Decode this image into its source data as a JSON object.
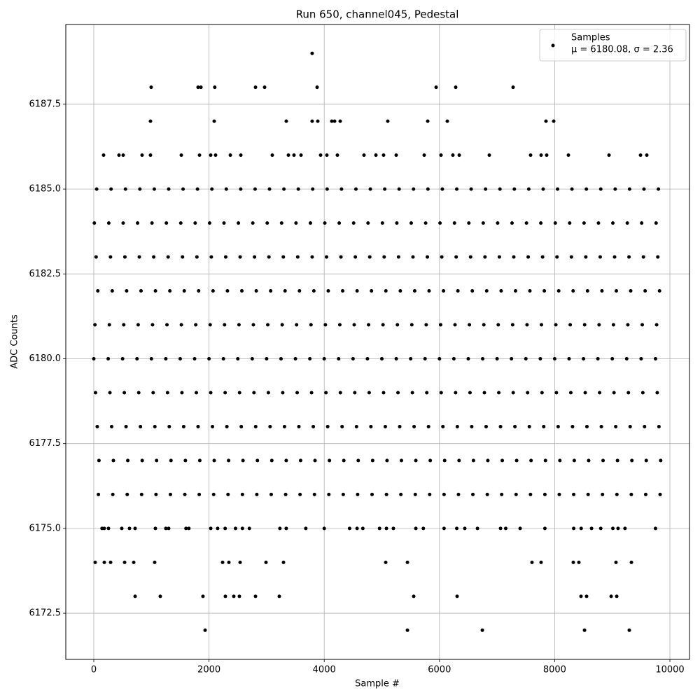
{
  "chart_data": {
    "type": "scatter",
    "title": "Run 650, channel045, Pedestal",
    "x_label": "Sample #",
    "y_label": "ADC Counts",
    "xlim": [
      -486,
      10340
    ],
    "ylim": [
      6171.14,
      6189.85
    ],
    "xticks": [
      0,
      2000,
      4000,
      6000,
      8000,
      10000
    ],
    "yticks": [
      6172.5,
      {
        "value": 6175,
        "label": "6175.0"
      },
      6177.5,
      {
        "value": 6180,
        "label": "6180.0"
      },
      6182.5,
      {
        "value": 6185,
        "label": "6185.0"
      },
      6187.5
    ],
    "grid": true,
    "legend": "upper right",
    "series": [
      {
        "name": "Samples",
        "stats": "μ = 6180.08, σ = 2.36",
        "color": "#000000",
        "x": [
          10,
          260,
          510,
          760,
          1010,
          1260,
          1510,
          1760,
          2010,
          2260,
          2510,
          2760,
          3010,
          3260,
          3510,
          3760,
          4010,
          4260,
          4510,
          4760,
          5010,
          5260,
          5510,
          5760,
          6010,
          6260,
          6510,
          6760,
          7010,
          7260,
          7510,
          7760,
          8010,
          8260,
          8510,
          8760,
          9010,
          9260,
          9510,
          9760,
          40,
          290,
          540,
          790,
          1040,
          1290,
          1540,
          1790,
          2040,
          2290,
          2540,
          2790,
          3040,
          3290,
          3540,
          3790,
          4040,
          4290,
          4540,
          4790,
          5040,
          5290,
          5540,
          5790,
          6040,
          6290,
          6540,
          6790,
          7040,
          7290,
          7540,
          7790,
          8040,
          8290,
          8540,
          8790,
          9040,
          9290,
          9540,
          9790,
          70,
          320,
          570,
          820,
          1070,
          1320,
          1570,
          1820,
          2070,
          2320,
          2570,
          2820,
          3070,
          3320,
          3570,
          3820,
          4070,
          4320,
          4570,
          4820,
          5070,
          5320,
          5570,
          5820,
          6070,
          6320,
          6570,
          6820,
          7070,
          7320,
          7570,
          7820,
          8070,
          8320,
          8570,
          8820,
          9070,
          9320,
          9570,
          9820,
          20,
          270,
          520,
          770,
          1020,
          1270,
          1520,
          1770,
          2020,
          2270,
          2520,
          2770,
          3020,
          3270,
          3520,
          3770,
          4020,
          4270,
          4520,
          4770,
          5020,
          5270,
          5520,
          5770,
          6020,
          6270,
          6520,
          6770,
          7020,
          7270,
          7520,
          7770,
          8020,
          8270,
          8520,
          8770,
          9020,
          9270,
          9520,
          9770,
          0,
          250,
          500,
          750,
          1000,
          1250,
          1500,
          1750,
          2000,
          2250,
          2500,
          2750,
          3000,
          3250,
          3500,
          3750,
          4000,
          4250,
          4500,
          4750,
          5000,
          5250,
          5500,
          5750,
          6000,
          6250,
          6500,
          6750,
          7000,
          7250,
          7500,
          7750,
          8000,
          8250,
          8500,
          8750,
          9000,
          9250,
          9500,
          9750,
          30,
          280,
          530,
          780,
          1030,
          1280,
          1530,
          1780,
          2030,
          2280,
          2530,
          2780,
          3030,
          3280,
          3530,
          3780,
          4030,
          4280,
          4530,
          4780,
          5030,
          5280,
          5530,
          5780,
          6030,
          6280,
          6530,
          6780,
          7030,
          7280,
          7530,
          7780,
          8030,
          8280,
          8530,
          8780,
          9030,
          9280,
          9530,
          9780,
          60,
          310,
          560,
          810,
          1060,
          1310,
          1560,
          1810,
          2060,
          2310,
          2560,
          2810,
          3060,
          3310,
          3560,
          3810,
          4060,
          4310,
          4560,
          4810,
          5060,
          5310,
          5560,
          5810,
          6060,
          6310,
          6560,
          6810,
          7060,
          7310,
          7560,
          7810,
          8060,
          8310,
          8560,
          8810,
          9060,
          9310,
          9560,
          9810,
          90,
          340,
          590,
          840,
          1090,
          1340,
          1590,
          1840,
          2090,
          2340,
          2590,
          2840,
          3090,
          3340,
          3590,
          3840,
          4090,
          4340,
          4590,
          4840,
          5090,
          5340,
          5590,
          5840,
          6090,
          6340,
          6590,
          6840,
          7090,
          7340,
          7590,
          7840,
          8090,
          8340,
          8590,
          8840,
          9090,
          9340,
          9590,
          9840,
          50,
          300,
          550,
          800,
          1050,
          1300,
          1550,
          1800,
          2050,
          2300,
          2550,
          2800,
          3050,
          3300,
          3550,
          3800,
          4050,
          4300,
          4550,
          4800,
          5050,
          5300,
          5550,
          5800,
          6050,
          6300,
          6550,
          6800,
          7050,
          7300,
          7550,
          7800,
          8050,
          8300,
          8550,
          8800,
          9050,
          9300,
          9550,
          9800,
          80,
          330,
          580,
          830,
          1080,
          1330,
          1580,
          1830,
          2080,
          2330,
          2580,
          2830,
          3080,
          3330,
          3580,
          3830,
          4080,
          4330,
          4580,
          4830,
          5080,
          5330,
          5580,
          5830,
          6080,
          6330,
          6580,
          6830,
          7080,
          7330,
          7580,
          7830,
          8080,
          8330,
          8580,
          8830,
          9080,
          9330,
          9580,
          9830,
          143,
          182,
          255,
          486,
          620,
          717,
          1069,
          1250,
          1300,
          1600,
          1650,
          2030,
          2150,
          2280,
          2460,
          2580,
          2700,
          3230,
          3340,
          3680,
          4000,
          4440,
          4570,
          4670,
          4960,
          5080,
          5200,
          5590,
          5720,
          6080,
          6300,
          6440,
          6660,
          7060,
          7150,
          7400,
          7830,
          8330,
          8460,
          8640,
          8800,
          9010,
          9100,
          9220,
          9750,
          3790,
          996,
          1810,
          1860,
          2100,
          2807,
          2965,
          3876,
          5942,
          6282,
          7278,
          984,
          2090,
          3341,
          3790,
          3888,
          4131,
          4180,
          4277,
          5103,
          5796,
          6136,
          7849,
          7983,
          170,
          437,
          510,
          838,
          984,
          1519,
          1835,
          2029,
          2114,
          2370,
          2552,
          3098,
          3378,
          3475,
          3597,
          3937,
          4046,
          4228,
          4690,
          4897,
          5030,
          5249,
          5735,
          6027,
          6233,
          6343,
          6865,
          7582,
          7764,
          7861,
          8238,
          8943,
          9490,
          9599,
          24,
          182,
          292,
          535,
          693,
          1057,
          2236,
          2345,
          2540,
          2989,
          3293,
          5067,
          5444,
          7606,
          7764,
          8323,
          8420,
          9064,
          9332,
          717,
          1154,
          1895,
          2284,
          2430,
          2527,
          2807,
          3220,
          5553,
          6306,
          8457,
          8554,
          8980,
          9077,
          1932,
          5444,
          6744,
          8518,
          9295
        ],
        "values": [
          6184,
          6184,
          6184,
          6184,
          6184,
          6184,
          6184,
          6184,
          6184,
          6184,
          6184,
          6184,
          6184,
          6184,
          6184,
          6184,
          6184,
          6184,
          6184,
          6184,
          6184,
          6184,
          6184,
          6184,
          6184,
          6184,
          6184,
          6184,
          6184,
          6184,
          6184,
          6184,
          6184,
          6184,
          6184,
          6184,
          6184,
          6184,
          6184,
          6184,
          6183,
          6183,
          6183,
          6183,
          6183,
          6183,
          6183,
          6183,
          6183,
          6183,
          6183,
          6183,
          6183,
          6183,
          6183,
          6183,
          6183,
          6183,
          6183,
          6183,
          6183,
          6183,
          6183,
          6183,
          6183,
          6183,
          6183,
          6183,
          6183,
          6183,
          6183,
          6183,
          6183,
          6183,
          6183,
          6183,
          6183,
          6183,
          6183,
          6183,
          6182,
          6182,
          6182,
          6182,
          6182,
          6182,
          6182,
          6182,
          6182,
          6182,
          6182,
          6182,
          6182,
          6182,
          6182,
          6182,
          6182,
          6182,
          6182,
          6182,
          6182,
          6182,
          6182,
          6182,
          6182,
          6182,
          6182,
          6182,
          6182,
          6182,
          6182,
          6182,
          6182,
          6182,
          6182,
          6182,
          6182,
          6182,
          6182,
          6182,
          6181,
          6181,
          6181,
          6181,
          6181,
          6181,
          6181,
          6181,
          6181,
          6181,
          6181,
          6181,
          6181,
          6181,
          6181,
          6181,
          6181,
          6181,
          6181,
          6181,
          6181,
          6181,
          6181,
          6181,
          6181,
          6181,
          6181,
          6181,
          6181,
          6181,
          6181,
          6181,
          6181,
          6181,
          6181,
          6181,
          6181,
          6181,
          6181,
          6181,
          6180,
          6180,
          6180,
          6180,
          6180,
          6180,
          6180,
          6180,
          6180,
          6180,
          6180,
          6180,
          6180,
          6180,
          6180,
          6180,
          6180,
          6180,
          6180,
          6180,
          6180,
          6180,
          6180,
          6180,
          6180,
          6180,
          6180,
          6180,
          6180,
          6180,
          6180,
          6180,
          6180,
          6180,
          6180,
          6180,
          6180,
          6180,
          6180,
          6180,
          6179,
          6179,
          6179,
          6179,
          6179,
          6179,
          6179,
          6179,
          6179,
          6179,
          6179,
          6179,
          6179,
          6179,
          6179,
          6179,
          6179,
          6179,
          6179,
          6179,
          6179,
          6179,
          6179,
          6179,
          6179,
          6179,
          6179,
          6179,
          6179,
          6179,
          6179,
          6179,
          6179,
          6179,
          6179,
          6179,
          6179,
          6179,
          6179,
          6179,
          6178,
          6178,
          6178,
          6178,
          6178,
          6178,
          6178,
          6178,
          6178,
          6178,
          6178,
          6178,
          6178,
          6178,
          6178,
          6178,
          6178,
          6178,
          6178,
          6178,
          6178,
          6178,
          6178,
          6178,
          6178,
          6178,
          6178,
          6178,
          6178,
          6178,
          6178,
          6178,
          6178,
          6178,
          6178,
          6178,
          6178,
          6178,
          6178,
          6178,
          6177,
          6177,
          6177,
          6177,
          6177,
          6177,
          6177,
          6177,
          6177,
          6177,
          6177,
          6177,
          6177,
          6177,
          6177,
          6177,
          6177,
          6177,
          6177,
          6177,
          6177,
          6177,
          6177,
          6177,
          6177,
          6177,
          6177,
          6177,
          6177,
          6177,
          6177,
          6177,
          6177,
          6177,
          6177,
          6177,
          6177,
          6177,
          6177,
          6177,
          6185,
          6185,
          6185,
          6185,
          6185,
          6185,
          6185,
          6185,
          6185,
          6185,
          6185,
          6185,
          6185,
          6185,
          6185,
          6185,
          6185,
          6185,
          6185,
          6185,
          6185,
          6185,
          6185,
          6185,
          6185,
          6185,
          6185,
          6185,
          6185,
          6185,
          6185,
          6185,
          6185,
          6185,
          6185,
          6185,
          6185,
          6185,
          6185,
          6185,
          6176,
          6176,
          6176,
          6176,
          6176,
          6176,
          6176,
          6176,
          6176,
          6176,
          6176,
          6176,
          6176,
          6176,
          6176,
          6176,
          6176,
          6176,
          6176,
          6176,
          6176,
          6176,
          6176,
          6176,
          6176,
          6176,
          6176,
          6176,
          6176,
          6176,
          6176,
          6176,
          6176,
          6176,
          6176,
          6176,
          6176,
          6176,
          6176,
          6176,
          6175,
          6175,
          6175,
          6175,
          6175,
          6175,
          6175,
          6175,
          6175,
          6175,
          6175,
          6175,
          6175,
          6175,
          6175,
          6175,
          6175,
          6175,
          6175,
          6175,
          6175,
          6175,
          6175,
          6175,
          6175,
          6175,
          6175,
          6175,
          6175,
          6175,
          6175,
          6175,
          6175,
          6175,
          6175,
          6175,
          6175,
          6175,
          6175,
          6175,
          6175,
          6175,
          6175,
          6175,
          6175,
          6189,
          6188,
          6188,
          6188,
          6188,
          6188,
          6188,
          6188,
          6188,
          6188,
          6188,
          6187,
          6187,
          6187,
          6187,
          6187,
          6187,
          6187,
          6187,
          6187,
          6187,
          6187,
          6187,
          6187,
          6186,
          6186,
          6186,
          6186,
          6186,
          6186,
          6186,
          6186,
          6186,
          6186,
          6186,
          6186,
          6186,
          6186,
          6186,
          6186,
          6186,
          6186,
          6186,
          6186,
          6186,
          6186,
          6186,
          6186,
          6186,
          6186,
          6186,
          6186,
          6186,
          6186,
          6186,
          6186,
          6186,
          6186,
          6174,
          6174,
          6174,
          6174,
          6174,
          6174,
          6174,
          6174,
          6174,
          6174,
          6174,
          6174,
          6174,
          6174,
          6174,
          6174,
          6174,
          6174,
          6174,
          6173,
          6173,
          6173,
          6173,
          6173,
          6173,
          6173,
          6173,
          6173,
          6173,
          6173,
          6173,
          6173,
          6173,
          6172,
          6172,
          6172,
          6172,
          6172
        ]
      }
    ]
  }
}
